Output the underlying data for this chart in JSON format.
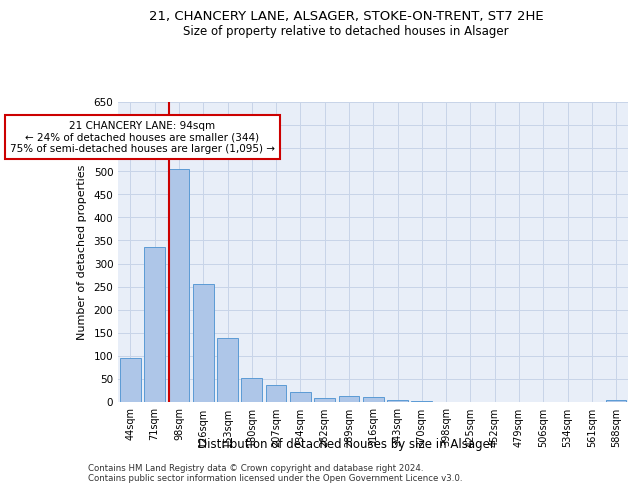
{
  "title1": "21, CHANCERY LANE, ALSAGER, STOKE-ON-TRENT, ST7 2HE",
  "title2": "Size of property relative to detached houses in Alsager",
  "xlabel": "Distribution of detached houses by size in Alsager",
  "ylabel": "Number of detached properties",
  "categories": [
    "44sqm",
    "71sqm",
    "98sqm",
    "126sqm",
    "153sqm",
    "180sqm",
    "207sqm",
    "234sqm",
    "262sqm",
    "289sqm",
    "316sqm",
    "343sqm",
    "370sqm",
    "398sqm",
    "425sqm",
    "452sqm",
    "479sqm",
    "506sqm",
    "534sqm",
    "561sqm",
    "588sqm"
  ],
  "values": [
    95,
    335,
    505,
    255,
    138,
    53,
    37,
    22,
    8,
    12,
    10,
    4,
    2,
    1,
    1,
    0,
    0,
    0,
    0,
    0,
    5
  ],
  "bar_color": "#aec6e8",
  "bar_edge_color": "#5b9bd5",
  "vline_x_idx": 2,
  "vline_color": "#cc0000",
  "annotation_text": "21 CHANCERY LANE: 94sqm\n← 24% of detached houses are smaller (344)\n75% of semi-detached houses are larger (1,095) →",
  "annotation_box_color": "white",
  "annotation_box_edge": "#cc0000",
  "ylim": [
    0,
    650
  ],
  "yticks": [
    0,
    50,
    100,
    150,
    200,
    250,
    300,
    350,
    400,
    450,
    500,
    550,
    600,
    650
  ],
  "grid_color": "#c8d4e8",
  "bg_color": "#e8eef8",
  "footer1": "Contains HM Land Registry data © Crown copyright and database right 2024.",
  "footer2": "Contains public sector information licensed under the Open Government Licence v3.0."
}
